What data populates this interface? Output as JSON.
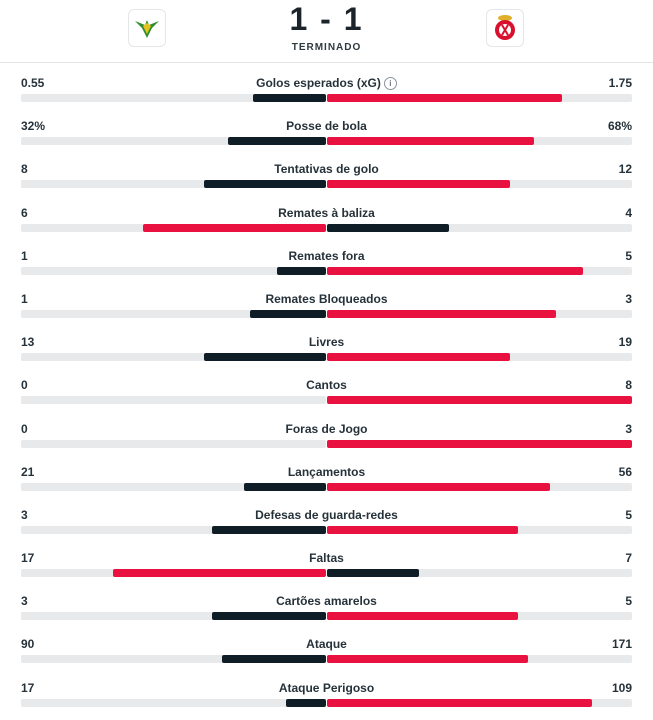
{
  "match": {
    "score": "1 - 1",
    "status": "TERMINADO"
  },
  "colors": {
    "leader": "#e8113f",
    "trailer": "#0f1d26",
    "track": "#e7e9ea"
  },
  "stats": [
    {
      "label": "Golos esperados (xG)",
      "home": "0.55",
      "away": "1.75",
      "info": true,
      "home_share": 0.24,
      "away_share": 0.77,
      "leader": "away"
    },
    {
      "label": "Posse de bola",
      "home": "32%",
      "away": "68%",
      "home_share": 0.32,
      "away_share": 0.68,
      "leader": "away"
    },
    {
      "label": "Tentativas de golo",
      "home": "8",
      "away": "12",
      "home_share": 0.4,
      "away_share": 0.6,
      "leader": "away"
    },
    {
      "label": "Remates à baliza",
      "home": "6",
      "away": "4",
      "home_share": 0.6,
      "away_share": 0.4,
      "leader": "home"
    },
    {
      "label": "Remates fora",
      "home": "1",
      "away": "5",
      "home_share": 0.16,
      "away_share": 0.84,
      "leader": "away"
    },
    {
      "label": "Remates Bloqueados",
      "home": "1",
      "away": "3",
      "home_share": 0.25,
      "away_share": 0.75,
      "leader": "away"
    },
    {
      "label": "Livres",
      "home": "13",
      "away": "19",
      "home_share": 0.4,
      "away_share": 0.6,
      "leader": "away"
    },
    {
      "label": "Cantos",
      "home": "0",
      "away": "8",
      "home_share": 0.0,
      "away_share": 1.0,
      "leader": "away"
    },
    {
      "label": "Foras de Jogo",
      "home": "0",
      "away": "3",
      "home_share": 0.0,
      "away_share": 1.0,
      "leader": "away"
    },
    {
      "label": "Lançamentos",
      "home": "21",
      "away": "56",
      "home_share": 0.27,
      "away_share": 0.73,
      "leader": "away"
    },
    {
      "label": "Defesas de guarda-redes",
      "home": "3",
      "away": "5",
      "home_share": 0.375,
      "away_share": 0.625,
      "leader": "away"
    },
    {
      "label": "Faltas",
      "home": "17",
      "away": "7",
      "home_share": 0.7,
      "away_share": 0.3,
      "leader": "home"
    },
    {
      "label": "Cartões amarelos",
      "home": "3",
      "away": "5",
      "home_share": 0.375,
      "away_share": 0.625,
      "leader": "away"
    },
    {
      "label": "Ataque",
      "home": "90",
      "away": "171",
      "home_share": 0.34,
      "away_share": 0.66,
      "leader": "away"
    },
    {
      "label": "Ataque Perigoso",
      "home": "17",
      "away": "109",
      "home_share": 0.13,
      "away_share": 0.87,
      "leader": "away"
    }
  ]
}
